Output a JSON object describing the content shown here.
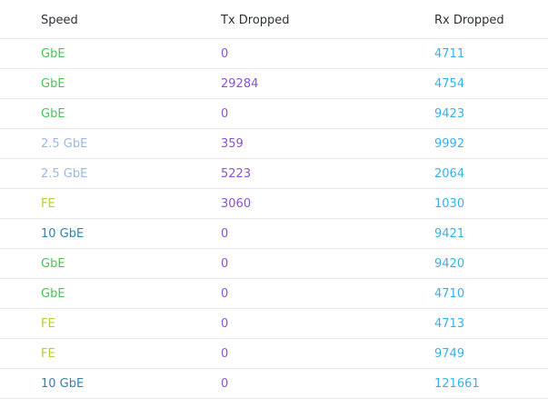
{
  "columns": {
    "speed": "Speed",
    "tx": "Tx Dropped",
    "rx": "Rx Dropped"
  },
  "speed_colors": {
    "GbE": "#4cc25c",
    "2.5 GbE": "#9ab8e6",
    "FE": "#b5cf3a",
    "10 GbE": "#2e83b3"
  },
  "value_colors": {
    "tx": "#8a52d6",
    "rx": "#3ab0e8"
  },
  "rows": [
    {
      "speed": "GbE",
      "tx": "0",
      "rx": "4711"
    },
    {
      "speed": "GbE",
      "tx": "29284",
      "rx": "4754"
    },
    {
      "speed": "GbE",
      "tx": "0",
      "rx": "9423"
    },
    {
      "speed": "2.5 GbE",
      "tx": "359",
      "rx": "9992"
    },
    {
      "speed": "2.5 GbE",
      "tx": "5223",
      "rx": "2064"
    },
    {
      "speed": "FE",
      "tx": "3060",
      "rx": "1030"
    },
    {
      "speed": "10 GbE",
      "tx": "0",
      "rx": "9421"
    },
    {
      "speed": "GbE",
      "tx": "0",
      "rx": "9420"
    },
    {
      "speed": "GbE",
      "tx": "0",
      "rx": "4710"
    },
    {
      "speed": "FE",
      "tx": "0",
      "rx": "4713"
    },
    {
      "speed": "FE",
      "tx": "0",
      "rx": "9749"
    },
    {
      "speed": "10 GbE",
      "tx": "0",
      "rx": "121661"
    }
  ]
}
